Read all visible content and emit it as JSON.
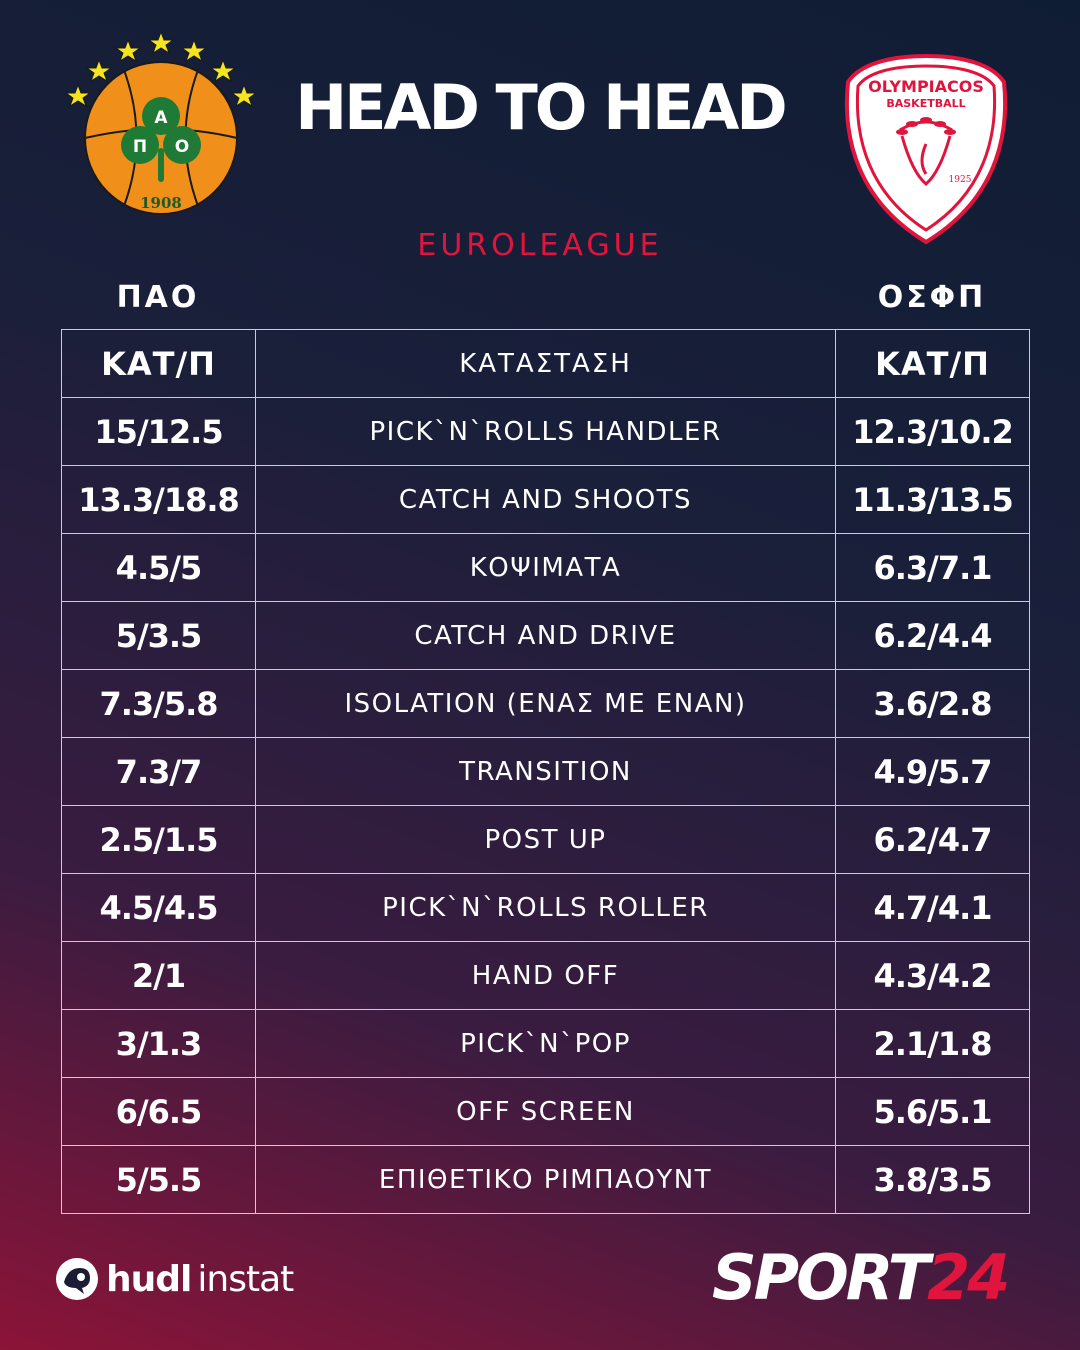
{
  "header": {
    "title": "HEAD TO HEAD",
    "competition": "EUROLEAGUE"
  },
  "teams": {
    "left": {
      "name": "ΠΑΟ",
      "logo_letters": [
        "Π",
        "Α",
        "Ο"
      ],
      "logo_year": "1908",
      "colors": {
        "ball": "#f0901a",
        "clover": "#1e7a34",
        "stars": "#f5e51e"
      }
    },
    "right": {
      "name": "ΟΣΦΠ",
      "logo_text_top": "OLYMPIACOS",
      "logo_text_sub": "BASKETBALL",
      "logo_year": "1925",
      "colors": {
        "primary": "#e0143c",
        "background": "#ffffff"
      }
    }
  },
  "table": {
    "header": {
      "left": "ΚΑΤ/Π",
      "middle": "ΚΑΤΑΣΤΑΣΗ",
      "right": "ΚΑΤ/Π"
    },
    "rows": [
      {
        "left": "15/12.5",
        "situation": "PICK`N`ROLLS HANDLER",
        "right": "12.3/10.2"
      },
      {
        "left": "13.3/18.8",
        "situation": "CATCH AND SHOOTS",
        "right": "11.3/13.5"
      },
      {
        "left": "4.5/5",
        "situation": "ΚΟΨΙΜΑΤΑ",
        "right": "6.3/7.1"
      },
      {
        "left": "5/3.5",
        "situation": "CATCH AND DRIVE",
        "right": "6.2/4.4"
      },
      {
        "left": "7.3/5.8",
        "situation": "ISOLATION (ΕΝΑΣ ΜΕ ΕΝΑΝ)",
        "right": "3.6/2.8"
      },
      {
        "left": "7.3/7",
        "situation": "TRANSITION",
        "right": "4.9/5.7"
      },
      {
        "left": "2.5/1.5",
        "situation": "POST UP",
        "right": "6.2/4.7"
      },
      {
        "left": "4.5/4.5",
        "situation": "PICK`N`ROLLS ROLLER",
        "right": "4.7/4.1"
      },
      {
        "left": "2/1",
        "situation": "HAND OFF",
        "right": "4.3/4.2"
      },
      {
        "left": "3/1.3",
        "situation": "PICK`N`POP",
        "right": "2.1/1.8"
      },
      {
        "left": "6/6.5",
        "situation": "OFF SCREEN",
        "right": "5.6/5.1"
      },
      {
        "left": "5/5.5",
        "situation": "ΕΠΙΘΕΤΙΚΟ ΡΙΜΠΑΟΥΝΤ",
        "right": "3.8/3.5"
      }
    ]
  },
  "footer": {
    "hudl_bold": "hudl",
    "hudl_light": "instat",
    "brand_part1": "SPORT",
    "brand_part2": "24",
    "brand_accent_color": "#e0143c"
  }
}
